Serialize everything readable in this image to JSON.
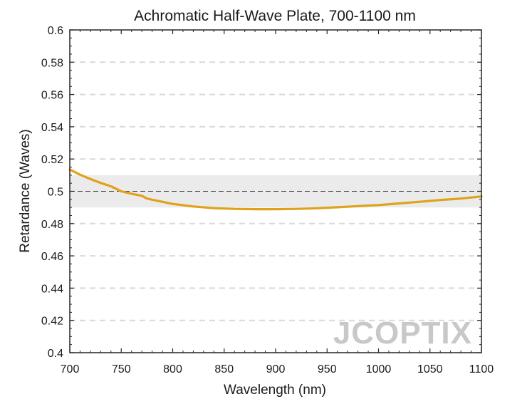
{
  "chart_data": {
    "type": "line",
    "title": "Achromatic Half-Wave Plate, 700-1100 nm",
    "xlabel": "Wavelength (nm)",
    "ylabel": "Retardance (Waves)",
    "xlim": [
      700,
      1100
    ],
    "ylim": [
      0.4,
      0.6
    ],
    "xticks": [
      700,
      750,
      800,
      850,
      900,
      950,
      1000,
      1050,
      1100
    ],
    "yticks": [
      0.4,
      0.42,
      0.44,
      0.46,
      0.48,
      0.5,
      0.52,
      0.54,
      0.56,
      0.58,
      0.6
    ],
    "xtick_labels": [
      "700",
      "750",
      "800",
      "850",
      "900",
      "950",
      "1000",
      "1050",
      "1100"
    ],
    "ytick_labels": [
      "0.4",
      "0.42",
      "0.44",
      "0.46",
      "0.48",
      "0.5",
      "0.52",
      "0.54",
      "0.56",
      "0.58",
      "0.6"
    ],
    "grid": true,
    "tolerance_band": [
      0.49,
      0.51
    ],
    "reference_line": 0.5,
    "series": [
      {
        "name": "Retardance",
        "color": "#e0a11b",
        "x": [
          700,
          710,
          720,
          730,
          740,
          750,
          760,
          770,
          775,
          780,
          800,
          820,
          840,
          860,
          880,
          900,
          920,
          940,
          960,
          980,
          1000,
          1020,
          1040,
          1060,
          1080,
          1100
        ],
        "y": [
          0.5135,
          0.5103,
          0.5076,
          0.5052,
          0.5031,
          0.5,
          0.4985,
          0.4972,
          0.4955,
          0.4948,
          0.4922,
          0.4906,
          0.4896,
          0.4891,
          0.4889,
          0.4889,
          0.4891,
          0.4895,
          0.4901,
          0.4908,
          0.4915,
          0.4925,
          0.4935,
          0.4946,
          0.4955,
          0.4968
        ]
      }
    ]
  },
  "colors": {
    "line": "#e0a11b",
    "band": "#ebebeb",
    "grid": "#d9d9d9",
    "axis": "#262626"
  },
  "watermark": "JCOPTIX"
}
